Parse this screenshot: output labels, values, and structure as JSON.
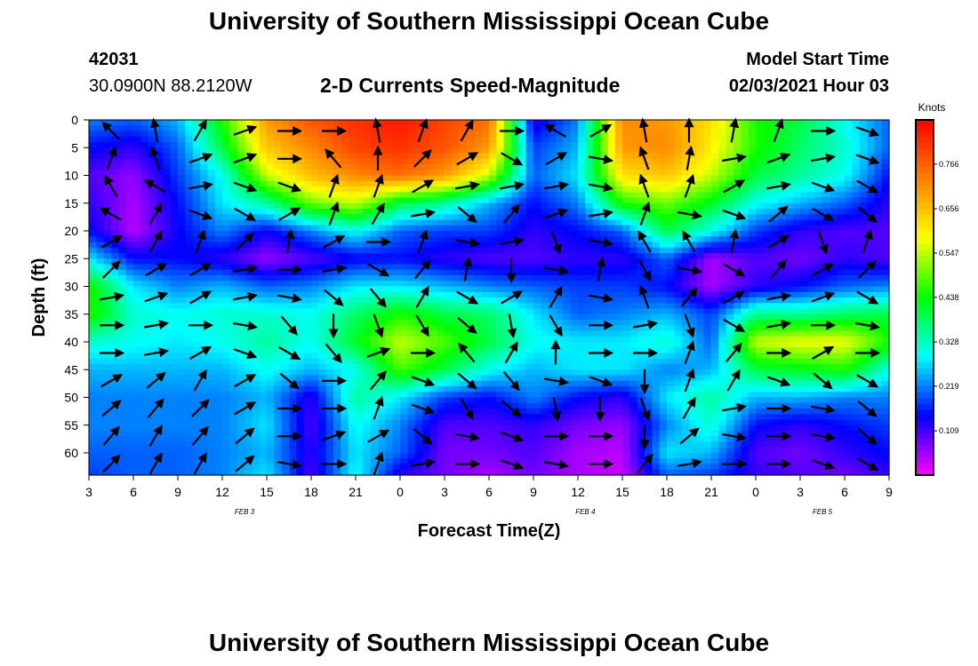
{
  "header": {
    "title": "University of Southern Mississippi Ocean Cube",
    "footer_title": "University of Southern Mississippi Ocean Cube",
    "station_id": "42031",
    "station_location": "30.0900N 88.2120W",
    "subtitle": "2-D Currents Speed-Magnitude",
    "start_label": "Model Start Time",
    "start_value": "02/03/2021 Hour 03"
  },
  "chart_data": {
    "type": "heatmap",
    "title": "2-D Currents Speed-Magnitude",
    "xlabel": "Forecast Time(Z)",
    "ylabel": "Depth (ft)",
    "x_ticks": [
      "3",
      "6",
      "9",
      "12",
      "15",
      "18",
      "21",
      "0",
      "3",
      "6",
      "9",
      "12",
      "15",
      "18",
      "21",
      "0",
      "3",
      "6",
      "9"
    ],
    "x_tick_hours": [
      3,
      6,
      9,
      12,
      15,
      18,
      21,
      24,
      27,
      30,
      33,
      36,
      39,
      42,
      45,
      48,
      51,
      54,
      57
    ],
    "date_labels": [
      {
        "label": "FEB 3",
        "hour": 13.5
      },
      {
        "label": "FEB 4",
        "hour": 36.5
      },
      {
        "label": "FEB 5",
        "hour": 52.5
      }
    ],
    "x_range": [
      3,
      57
    ],
    "y_ticks": [
      0,
      5,
      10,
      15,
      20,
      25,
      30,
      35,
      40,
      45,
      50,
      55,
      60
    ],
    "y_range": [
      0,
      64
    ],
    "y_inverted": true,
    "colorbar": {
      "title": "Knots",
      "ticks": [
        "0.766",
        "0.656",
        "0.547",
        "0.438",
        "0.328",
        "0.219",
        "0.109"
      ],
      "tick_values": [
        0.766,
        0.656,
        0.547,
        0.438,
        0.328,
        0.219,
        0.109
      ],
      "range": [
        0,
        0.875
      ],
      "colors": [
        "#ff00ff",
        "#8000ff",
        "#0000ff",
        "#0080ff",
        "#00ffff",
        "#00ff80",
        "#00ff00",
        "#80ff00",
        "#ffff00",
        "#ffc000",
        "#ff8000",
        "#ff4000",
        "#ff0000"
      ]
    },
    "hours": [
      3,
      6,
      9,
      12,
      15,
      18,
      21,
      24,
      27,
      30,
      33,
      36,
      39,
      42,
      45,
      48,
      51,
      54,
      57
    ],
    "depths": [
      0,
      5,
      10,
      15,
      20,
      25,
      30,
      35,
      40,
      45,
      50,
      55,
      60,
      64
    ],
    "values": [
      [
        0.22,
        0.2,
        0.25,
        0.45,
        0.7,
        0.78,
        0.82,
        0.85,
        0.8,
        0.75,
        0.12,
        0.22,
        0.72,
        0.7,
        0.62,
        0.45,
        0.4,
        0.3,
        0.2
      ],
      [
        0.15,
        0.12,
        0.2,
        0.4,
        0.65,
        0.72,
        0.8,
        0.82,
        0.78,
        0.7,
        0.18,
        0.25,
        0.7,
        0.72,
        0.6,
        0.45,
        0.38,
        0.32,
        0.2
      ],
      [
        0.1,
        0.06,
        0.18,
        0.3,
        0.55,
        0.66,
        0.72,
        0.75,
        0.7,
        0.55,
        0.2,
        0.28,
        0.62,
        0.65,
        0.55,
        0.4,
        0.35,
        0.3,
        0.15
      ],
      [
        0.12,
        0.05,
        0.15,
        0.28,
        0.35,
        0.5,
        0.55,
        0.4,
        0.35,
        0.25,
        0.15,
        0.22,
        0.45,
        0.5,
        0.42,
        0.3,
        0.25,
        0.2,
        0.12
      ],
      [
        0.15,
        0.04,
        0.14,
        0.22,
        0.14,
        0.22,
        0.3,
        0.2,
        0.18,
        0.18,
        0.12,
        0.15,
        0.2,
        0.4,
        0.3,
        0.18,
        0.12,
        0.1,
        0.1
      ],
      [
        0.28,
        0.15,
        0.15,
        0.12,
        0.06,
        0.1,
        0.14,
        0.15,
        0.12,
        0.1,
        0.1,
        0.12,
        0.12,
        0.2,
        0.05,
        0.1,
        0.08,
        0.12,
        0.1
      ],
      [
        0.45,
        0.28,
        0.22,
        0.25,
        0.2,
        0.22,
        0.28,
        0.28,
        0.25,
        0.22,
        0.2,
        0.18,
        0.18,
        0.15,
        0.05,
        0.12,
        0.15,
        0.2,
        0.22
      ],
      [
        0.46,
        0.32,
        0.3,
        0.32,
        0.32,
        0.3,
        0.38,
        0.45,
        0.4,
        0.38,
        0.28,
        0.2,
        0.22,
        0.25,
        0.18,
        0.36,
        0.35,
        0.38,
        0.4
      ],
      [
        0.32,
        0.3,
        0.28,
        0.3,
        0.35,
        0.3,
        0.42,
        0.55,
        0.48,
        0.4,
        0.3,
        0.28,
        0.28,
        0.32,
        0.2,
        0.55,
        0.58,
        0.58,
        0.45
      ],
      [
        0.25,
        0.25,
        0.25,
        0.25,
        0.3,
        0.25,
        0.3,
        0.48,
        0.4,
        0.3,
        0.25,
        0.28,
        0.28,
        0.22,
        0.25,
        0.4,
        0.42,
        0.45,
        0.3
      ],
      [
        0.22,
        0.22,
        0.22,
        0.22,
        0.25,
        0.12,
        0.35,
        0.28,
        0.18,
        0.15,
        0.22,
        0.15,
        0.12,
        0.28,
        0.35,
        0.25,
        0.25,
        0.22,
        0.22
      ],
      [
        0.22,
        0.22,
        0.22,
        0.22,
        0.28,
        0.1,
        0.3,
        0.22,
        0.1,
        0.1,
        0.12,
        0.08,
        0.06,
        0.22,
        0.32,
        0.15,
        0.12,
        0.15,
        0.18
      ],
      [
        0.2,
        0.2,
        0.2,
        0.22,
        0.25,
        0.12,
        0.28,
        0.2,
        0.08,
        0.08,
        0.1,
        0.05,
        0.04,
        0.28,
        0.25,
        0.1,
        0.08,
        0.12,
        0.15
      ],
      [
        0.18,
        0.2,
        0.2,
        0.22,
        0.28,
        0.1,
        0.3,
        0.12,
        0.08,
        0.05,
        0.08,
        0.05,
        0.03,
        0.2,
        0.18,
        0.12,
        0.1,
        0.08,
        0.12
      ]
    ],
    "vector_hours": [
      4.5,
      7.5,
      10.5,
      13.5,
      16.5,
      19.5,
      22.5,
      25.5,
      28.5,
      31.5,
      34.5,
      37.5,
      40.5,
      43.5,
      46.5,
      49.5,
      52.5,
      55.5
    ],
    "vector_depths": [
      2,
      7,
      12,
      17,
      22,
      27,
      32,
      37,
      42,
      47,
      52,
      57,
      62
    ],
    "vector_directions_deg": [
      [
        315,
        350,
        30,
        70,
        90,
        90,
        350,
        20,
        30,
        90,
        300,
        60,
        350,
        0,
        10,
        20,
        90,
        110
      ],
      [
        20,
        340,
        70,
        70,
        90,
        320,
        0,
        45,
        60,
        120,
        60,
        100,
        340,
        10,
        80,
        70,
        80,
        110
      ],
      [
        330,
        300,
        80,
        110,
        110,
        20,
        20,
        60,
        80,
        80,
        80,
        100,
        340,
        20,
        60,
        80,
        110,
        120
      ],
      [
        300,
        30,
        110,
        120,
        60,
        20,
        30,
        80,
        130,
        40,
        70,
        80,
        20,
        100,
        110,
        50,
        120,
        130
      ],
      [
        60,
        30,
        20,
        45,
        10,
        60,
        90,
        20,
        100,
        80,
        160,
        100,
        330,
        330,
        10,
        60,
        160,
        20
      ],
      [
        45,
        60,
        60,
        80,
        90,
        80,
        120,
        40,
        10,
        180,
        100,
        10,
        150,
        100,
        120,
        40,
        60,
        45
      ],
      [
        80,
        70,
        60,
        80,
        100,
        130,
        140,
        30,
        120,
        60,
        30,
        100,
        340,
        40,
        60,
        80,
        70,
        120
      ],
      [
        90,
        80,
        90,
        100,
        140,
        180,
        160,
        150,
        130,
        170,
        150,
        90,
        80,
        160,
        120,
        80,
        90,
        100
      ],
      [
        90,
        80,
        60,
        110,
        120,
        140,
        70,
        90,
        320,
        30,
        0,
        90,
        90,
        20,
        40,
        90,
        60,
        90
      ],
      [
        60,
        50,
        30,
        60,
        130,
        90,
        40,
        110,
        130,
        140,
        100,
        110,
        180,
        20,
        30,
        110,
        130,
        120
      ],
      [
        50,
        40,
        45,
        60,
        90,
        90,
        20,
        110,
        150,
        130,
        170,
        180,
        160,
        30,
        80,
        90,
        100,
        130
      ],
      [
        40,
        30,
        40,
        50,
        90,
        70,
        60,
        130,
        100,
        110,
        90,
        90,
        180,
        50,
        100,
        90,
        100,
        130
      ],
      [
        45,
        30,
        30,
        50,
        100,
        90,
        20,
        80,
        90,
        110,
        100,
        90,
        40,
        80,
        90,
        90,
        110,
        120
      ]
    ]
  }
}
